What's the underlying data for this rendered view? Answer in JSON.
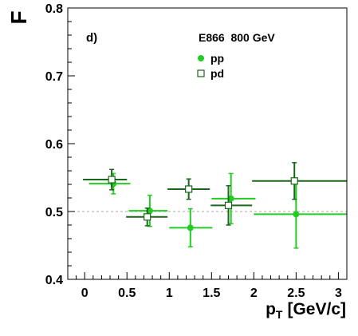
{
  "chart_data": {
    "type": "scatter",
    "panel_label": "d)",
    "header": "E866  800 GeV",
    "ylabel": "F",
    "xlabel_main": "p",
    "xlabel_sub": "T",
    "xlabel_unit": "[GeV/c]",
    "xlim": [
      -0.2,
      3.1
    ],
    "ylim": [
      0.4,
      0.8
    ],
    "x_ticks": [
      0,
      0.5,
      1,
      1.5,
      2,
      2.5,
      3
    ],
    "x_tick_labels": [
      "0",
      "0.5",
      "1",
      "1.5",
      "2",
      "2.5",
      "3"
    ],
    "y_ticks": [
      0.4,
      0.5,
      0.6,
      0.7,
      0.8
    ],
    "y_tick_labels": [
      "0.4",
      "0.5",
      "0.6",
      "0.7",
      "0.8"
    ],
    "reference_line": 0.5,
    "grid": false,
    "legend_position": "top-center",
    "series": [
      {
        "name": "pp",
        "marker": "filled-circle",
        "color": "#22cc22",
        "points": [
          {
            "x": 0.34,
            "xlo": 0.05,
            "xhi": 0.54,
            "y": 0.541,
            "ylo": 0.526,
            "yhi": 0.556
          },
          {
            "x": 0.77,
            "xlo": 0.52,
            "xhi": 0.98,
            "y": 0.501,
            "ylo": 0.478,
            "yhi": 0.524
          },
          {
            "x": 1.25,
            "xlo": 1.0,
            "xhi": 1.51,
            "y": 0.476,
            "ylo": 0.448,
            "yhi": 0.504
          },
          {
            "x": 1.73,
            "xlo": 1.5,
            "xhi": 2.02,
            "y": 0.519,
            "ylo": 0.482,
            "yhi": 0.556
          },
          {
            "x": 2.5,
            "xlo": 2.0,
            "xhi": 3.1,
            "y": 0.496,
            "ylo": 0.446,
            "yhi": 0.546
          }
        ]
      },
      {
        "name": "pd",
        "marker": "open-square",
        "color": "#1a661a",
        "points": [
          {
            "x": 0.32,
            "xlo": -0.02,
            "xhi": 0.5,
            "y": 0.547,
            "ylo": 0.532,
            "yhi": 0.562
          },
          {
            "x": 0.74,
            "xlo": 0.49,
            "xhi": 0.98,
            "y": 0.492,
            "ylo": 0.479,
            "yhi": 0.505
          },
          {
            "x": 1.23,
            "xlo": 0.98,
            "xhi": 1.48,
            "y": 0.533,
            "ylo": 0.518,
            "yhi": 0.548
          },
          {
            "x": 1.7,
            "xlo": 1.49,
            "xhi": 1.98,
            "y": 0.509,
            "ylo": 0.48,
            "yhi": 0.538
          },
          {
            "x": 2.48,
            "xlo": 1.98,
            "xhi": 3.1,
            "y": 0.545,
            "ylo": 0.518,
            "yhi": 0.572
          }
        ]
      }
    ]
  }
}
